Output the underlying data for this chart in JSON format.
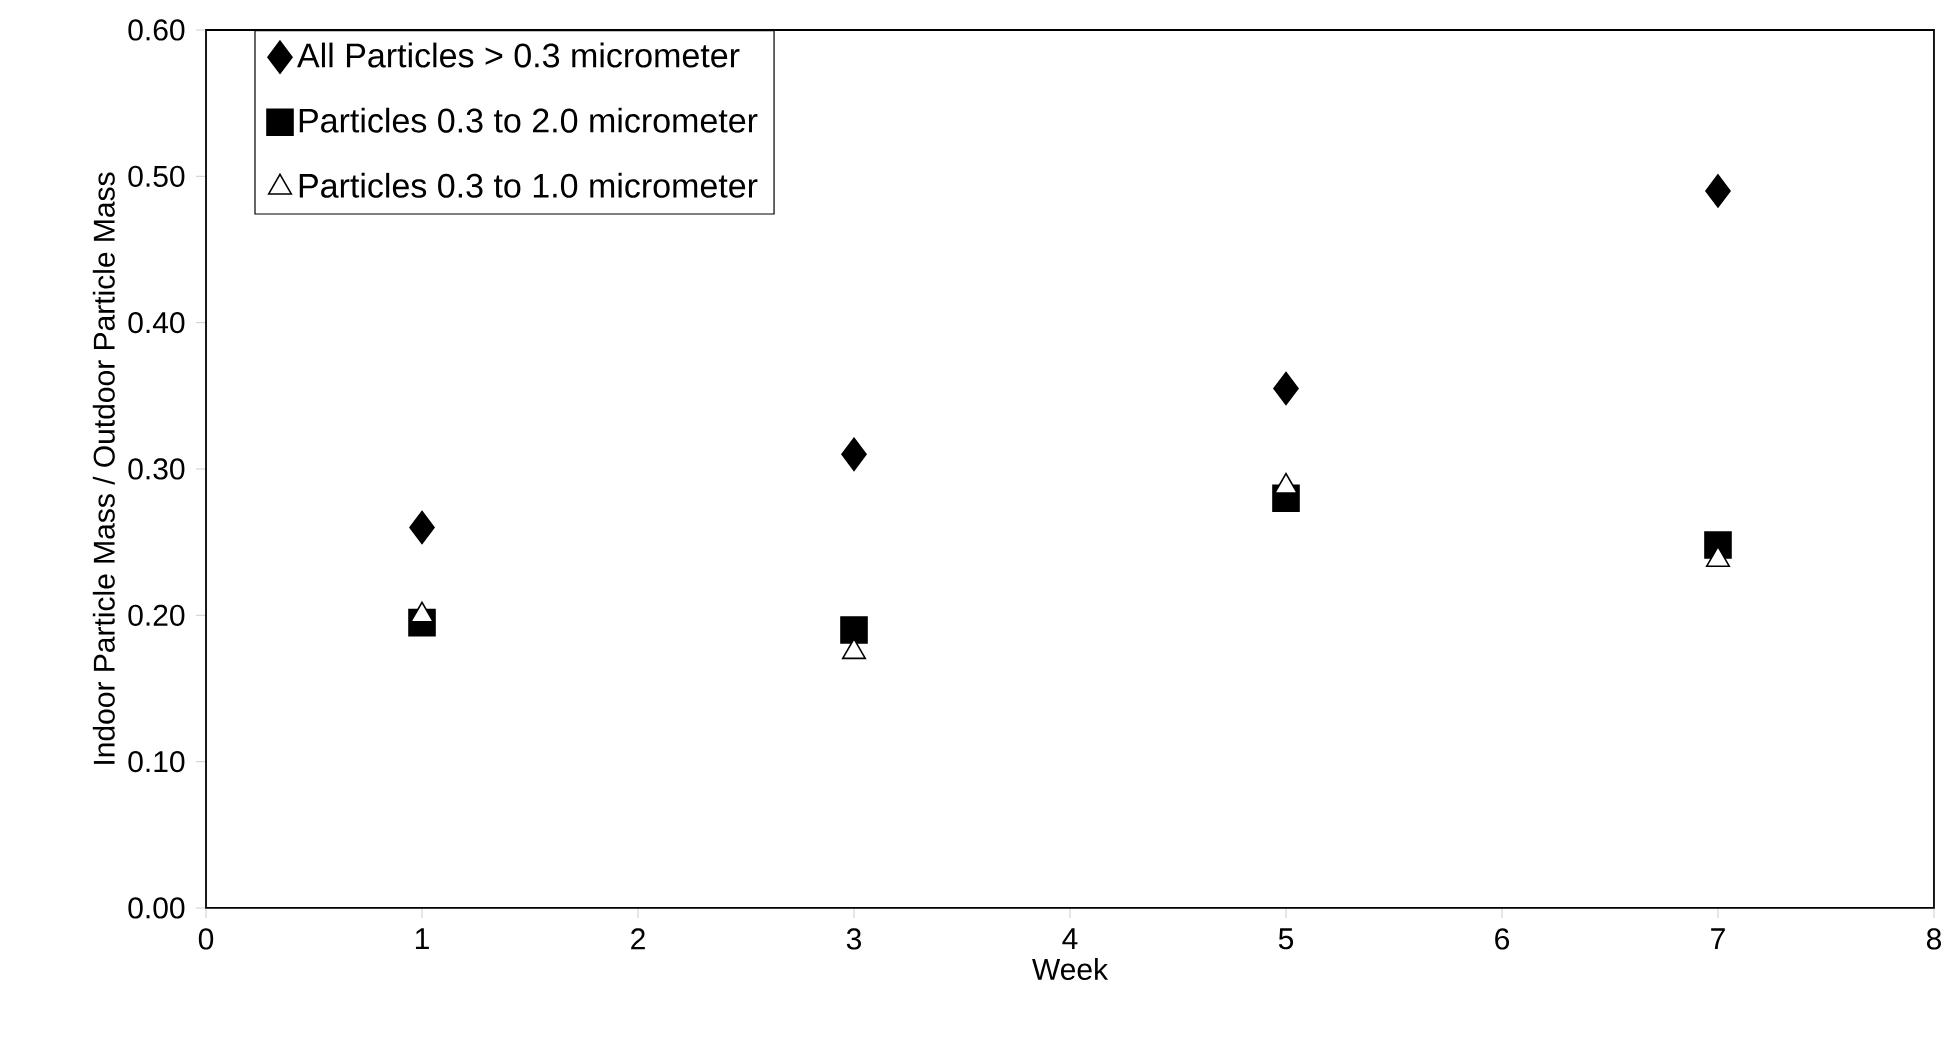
{
  "chart_data": {
    "type": "scatter",
    "xlabel": "Week",
    "ylabel": "Indoor Particle Mass / Outdoor Particle Mass",
    "x": [
      1,
      3,
      5,
      7
    ],
    "series": [
      {
        "name": "All Particles > 0.3 micrometer",
        "color": "#000000",
        "marker": "diamond",
        "values": [
          0.26,
          0.31,
          0.355,
          0.49
        ]
      },
      {
        "name": "Particles 0.3 to 2.0 micrometer",
        "color": "#000000",
        "marker": "square",
        "values": [
          0.195,
          0.19,
          0.28,
          0.248
        ]
      },
      {
        "name": "Particles 0.3 to 1.0 micrometer",
        "color": "#000000",
        "marker": "triangle",
        "values": [
          0.2,
          0.175,
          0.288,
          0.238
        ]
      }
    ],
    "xlim": [
      0,
      8
    ],
    "ylim": [
      0,
      0.6
    ],
    "xticks": [
      0,
      1,
      2,
      3,
      4,
      5,
      6,
      7,
      8
    ],
    "yticks": [
      {
        "value": 0,
        "label": "0.00"
      },
      {
        "value": 0.1,
        "label": "0.10"
      },
      {
        "value": 0.2,
        "label": "0.20"
      },
      {
        "value": 0.3,
        "label": "0.30"
      },
      {
        "value": 0.4,
        "label": "0.40"
      },
      {
        "value": 0.5,
        "label": "0.50"
      },
      {
        "value": 0.6,
        "label": "0.60"
      }
    ],
    "grid": false,
    "legend": "top left"
  }
}
